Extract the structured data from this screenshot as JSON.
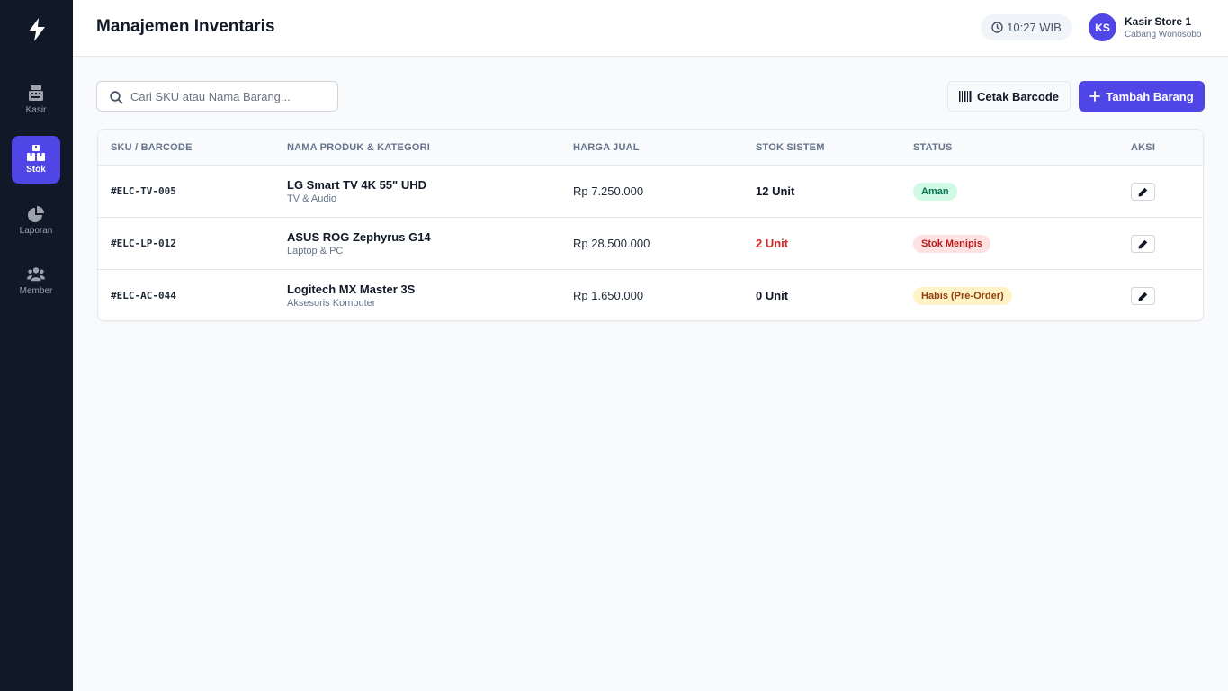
{
  "sidebar": {
    "items": [
      {
        "label": "Kasir",
        "icon": "cash-register-icon",
        "active": false
      },
      {
        "label": "Stok",
        "icon": "boxes-icon",
        "active": true
      },
      {
        "label": "Laporan",
        "icon": "pie-chart-icon",
        "active": false
      },
      {
        "label": "Member",
        "icon": "users-icon",
        "active": false
      }
    ]
  },
  "header": {
    "title": "Manajemen Inventaris",
    "time": "10:27 WIB",
    "user": {
      "initials": "KS",
      "name": "Kasir Store 1",
      "branch": "Cabang Wonosobo"
    }
  },
  "toolbar": {
    "search_placeholder": "Cari SKU atau Nama Barang...",
    "search_value": "",
    "barcode_label": "Cetak Barcode",
    "add_label": "Tambah Barang"
  },
  "table": {
    "columns": [
      "SKU / Barcode",
      "Nama Produk & Kategori",
      "Harga Jual",
      "Stok Sistem",
      "Status",
      "Aksi"
    ],
    "rows": [
      {
        "sku": "#ELC-TV-005",
        "name": "LG Smart TV 4K 55\" UHD",
        "category": "TV & Audio",
        "price": "Rp 7.250.000",
        "stock": "12 Unit",
        "status": "Aman",
        "status_type": "ok"
      },
      {
        "sku": "#ELC-LP-012",
        "name": "ASUS ROG Zephyrus G14",
        "category": "Laptop & PC",
        "price": "Rp 28.500.000",
        "stock": "2 Unit",
        "status": "Stok Menipis",
        "status_type": "low"
      },
      {
        "sku": "#ELC-AC-044",
        "name": "Logitech MX Master 3S",
        "category": "Aksesoris Komputer",
        "price": "Rp 1.650.000",
        "stock": "0 Unit",
        "status": "Habis (Pre-Order)",
        "status_type": "out"
      }
    ]
  },
  "colors": {
    "sidebar_bg": "#111827",
    "accent": "#4f46e5",
    "danger": "#dc2626",
    "success_bg": "#d1fae5",
    "warning_bg": "#fef3c7"
  }
}
